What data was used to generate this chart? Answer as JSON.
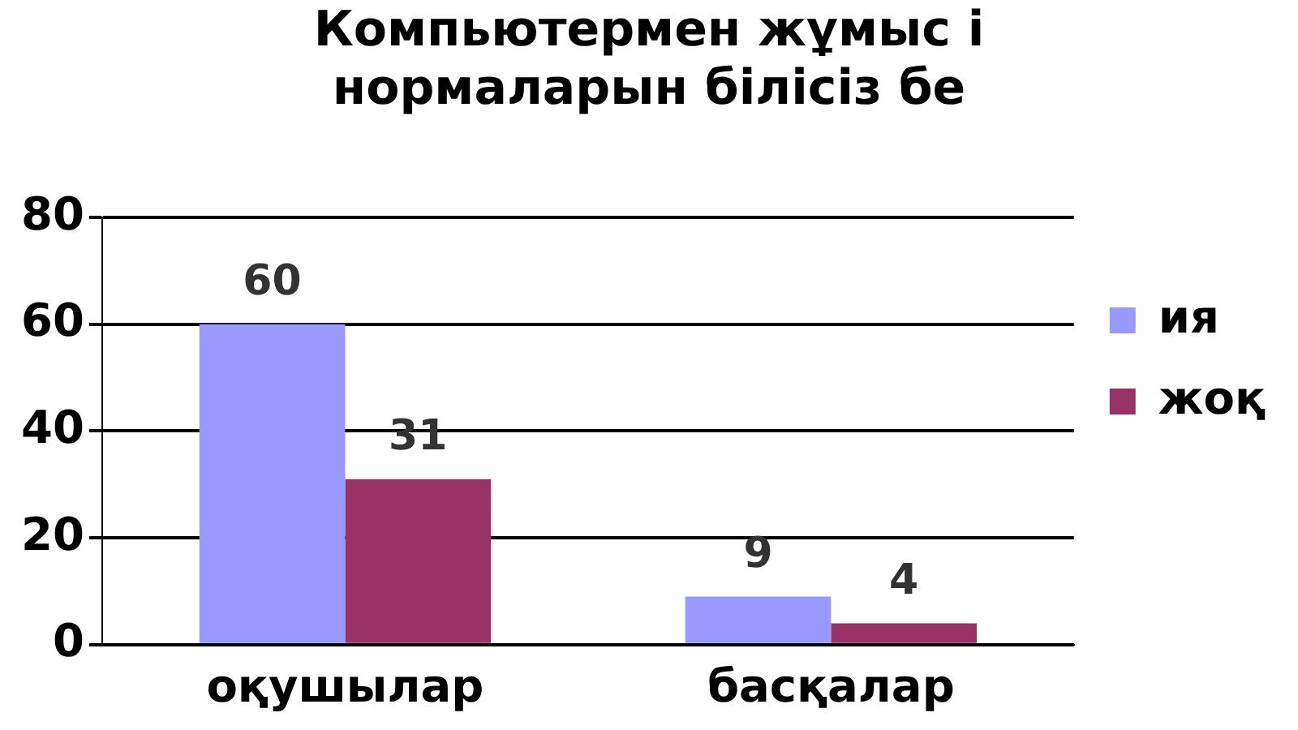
{
  "chart_data": {
    "type": "bar",
    "title": "Компьютермен жұмыс і\nнормаларын білісіз бе",
    "categories": [
      "оқушылар",
      "басқалар"
    ],
    "series": [
      {
        "name": "ия",
        "color": "#9999ff",
        "values": [
          60,
          9
        ]
      },
      {
        "name": "жоқ",
        "color": "#993366",
        "values": [
          31,
          4
        ]
      }
    ],
    "ylim": [
      0,
      80
    ],
    "yticks": [
      0,
      20,
      40,
      60,
      80
    ],
    "grid": "y",
    "legend": "right",
    "data_labels": true
  }
}
